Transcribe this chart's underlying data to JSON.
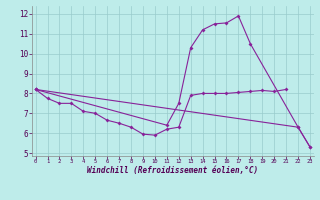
{
  "background_color": "#beecea",
  "line_color": "#882299",
  "grid_color": "#99cccc",
  "xlabel": "Windchill (Refroidissement éolien,°C)",
  "line1_x": [
    0,
    1,
    2,
    3,
    4,
    5,
    6,
    7,
    8,
    9,
    10,
    11,
    12,
    13,
    14,
    15,
    16,
    17,
    18,
    19,
    20,
    21
  ],
  "line1_y": [
    8.2,
    7.75,
    7.5,
    7.5,
    7.1,
    7.0,
    6.65,
    6.5,
    6.3,
    5.95,
    5.9,
    6.2,
    6.3,
    7.9,
    8.0,
    8.0,
    8.0,
    8.05,
    8.1,
    8.15,
    8.1,
    8.2
  ],
  "line2_x": [
    0,
    11,
    12,
    13,
    14,
    15,
    16,
    17,
    18,
    22,
    23
  ],
  "line2_y": [
    8.2,
    6.4,
    7.5,
    10.3,
    11.2,
    11.5,
    11.55,
    11.9,
    10.5,
    6.3,
    5.3
  ],
  "line3_x": [
    0,
    22,
    23
  ],
  "line3_y": [
    8.2,
    6.3,
    5.3
  ],
  "ylim": [
    4.85,
    12.4
  ],
  "xlim": [
    -0.3,
    23.3
  ],
  "yticks": [
    5,
    6,
    7,
    8,
    9,
    10,
    11,
    12
  ],
  "xticks": [
    0,
    1,
    2,
    3,
    4,
    5,
    6,
    7,
    8,
    9,
    10,
    11,
    12,
    13,
    14,
    15,
    16,
    17,
    18,
    19,
    20,
    21,
    22,
    23
  ]
}
